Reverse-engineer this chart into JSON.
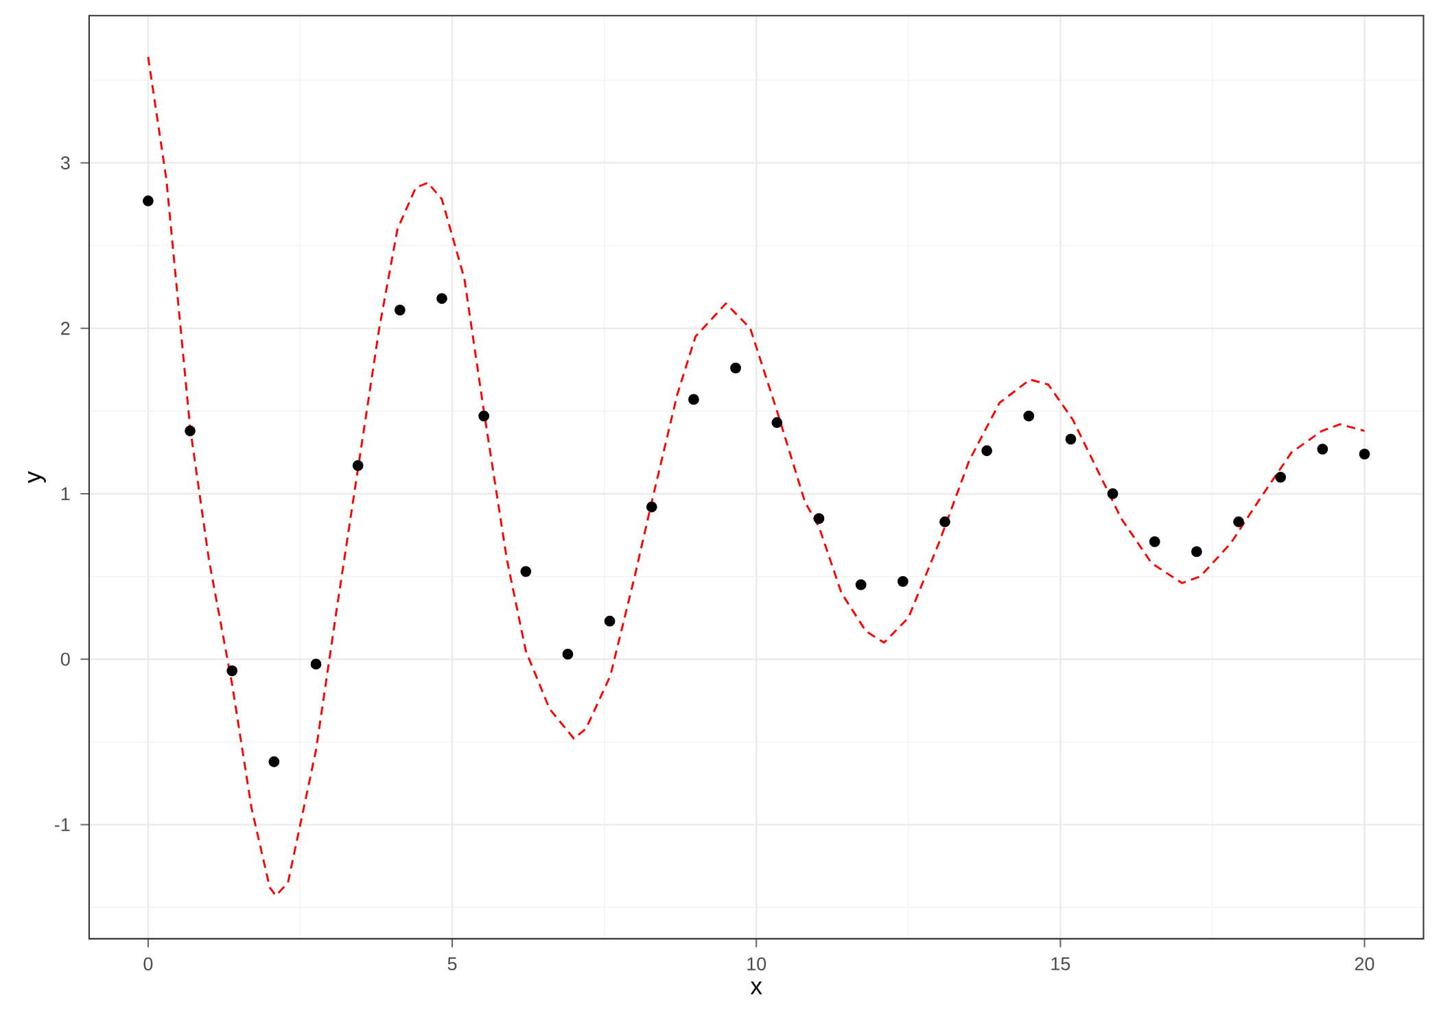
{
  "chart_data": {
    "type": "scatter",
    "xlabel": "x",
    "ylabel": "y",
    "xlim": [
      -0.97,
      20.97
    ],
    "ylim": [
      -1.69,
      3.89
    ],
    "xticks": [
      0,
      5,
      10,
      15,
      20
    ],
    "yticks": [
      -1,
      0,
      1,
      2,
      3
    ],
    "grid": true,
    "series": [
      {
        "color": "#000000",
        "marker": "circle",
        "x": [
          0,
          0.69,
          1.38,
          2.07,
          2.76,
          3.45,
          4.14,
          4.83,
          5.52,
          6.21,
          6.9,
          7.59,
          8.28,
          8.97,
          9.66,
          10.34,
          11.03,
          11.72,
          12.41,
          13.1,
          13.79,
          14.48,
          15.17,
          15.86,
          16.55,
          17.24,
          17.93,
          18.62,
          19.31,
          20
        ],
        "values": [
          2.77,
          1.38,
          -0.07,
          -0.62,
          -0.03,
          1.17,
          2.11,
          2.18,
          1.47,
          0.53,
          0.03,
          0.23,
          0.92,
          1.57,
          1.76,
          1.43,
          0.85,
          0.45,
          0.47,
          0.83,
          1.26,
          1.47,
          1.33,
          1.0,
          0.71,
          0.65,
          0.83,
          1.1,
          1.27,
          1.24
        ]
      },
      {
        "type": "line",
        "color": "#ff0000",
        "line_style": "dashed",
        "marker": "none",
        "x": [
          0,
          0.3,
          0.69,
          1.0,
          1.38,
          1.7,
          2.0,
          2.1,
          2.3,
          2.76,
          3.1,
          3.45,
          3.8,
          4.1,
          4.4,
          4.6,
          4.83,
          5.2,
          5.52,
          5.9,
          6.21,
          6.6,
          7.0,
          7.2,
          7.6,
          8.0,
          8.28,
          8.7,
          9.0,
          9.5,
          9.9,
          10.34,
          10.8,
          11.03,
          11.4,
          11.8,
          12.1,
          12.5,
          13.0,
          13.5,
          14.0,
          14.5,
          14.8,
          15.2,
          15.6,
          16.0,
          16.5,
          17.0,
          17.3,
          17.8,
          18.3,
          18.8,
          19.3,
          19.6,
          20
        ],
        "values": [
          3.64,
          2.9,
          1.4,
          0.6,
          -0.15,
          -0.9,
          -1.38,
          -1.43,
          -1.35,
          -0.55,
          0.3,
          1.15,
          2.0,
          2.6,
          2.85,
          2.88,
          2.78,
          2.3,
          1.5,
          0.6,
          0.05,
          -0.3,
          -0.48,
          -0.42,
          -0.1,
          0.5,
          0.95,
          1.6,
          1.95,
          2.15,
          2.0,
          1.5,
          0.95,
          0.8,
          0.4,
          0.17,
          0.1,
          0.25,
          0.7,
          1.2,
          1.55,
          1.69,
          1.66,
          1.45,
          1.15,
          0.85,
          0.58,
          0.46,
          0.5,
          0.7,
          0.98,
          1.25,
          1.38,
          1.42,
          1.38
        ]
      }
    ]
  }
}
